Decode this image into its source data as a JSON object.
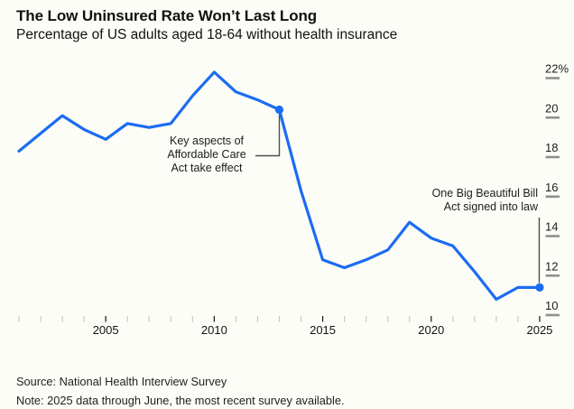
{
  "header": {
    "title": "The Low Uninsured Rate Won’t Last Long",
    "subtitle": "Percentage of US adults aged 18-64 without health insurance"
  },
  "chart_data": {
    "type": "line",
    "title": "The Low Uninsured Rate Won’t Last Long",
    "subtitle": "Percentage of US adults aged 18-64 without health insurance",
    "series": [
      {
        "name": "Percentage of US adults aged 18-64 without health insurance",
        "x": [
          2001,
          2002,
          2003,
          2004,
          2005,
          2006,
          2007,
          2008,
          2009,
          2010,
          2011,
          2012,
          2013,
          2014,
          2015,
          2016,
          2017,
          2018,
          2019,
          2020,
          2021,
          2022,
          2023,
          2024,
          2025
        ],
        "values": [
          18.3,
          19.2,
          20.1,
          19.4,
          18.9,
          19.7,
          19.5,
          19.7,
          21.1,
          22.3,
          21.3,
          20.9,
          20.4,
          16.3,
          12.8,
          12.4,
          12.8,
          13.3,
          14.7,
          13.9,
          13.5,
          12.2,
          10.8,
          11.4,
          11.4
        ]
      }
    ],
    "xlim": [
      2001,
      2025
    ],
    "ylim": [
      10,
      22
    ],
    "yticks": [
      10,
      12,
      14,
      16,
      18,
      20,
      22
    ],
    "ytick_labels": [
      "10",
      "12",
      "14",
      "16",
      "18",
      "20",
      "22%"
    ],
    "xticks_labeled": [
      2005,
      2010,
      2015,
      2020,
      2025
    ],
    "xtick_labels": [
      "2005",
      "2010",
      "2015",
      "2020",
      "2025"
    ],
    "grid": "off",
    "legend": "none",
    "axis_style": "right-side percent labels with short gray dash marks; yearly minor ticks on bottom",
    "markers": [
      {
        "year": 2013,
        "value": 20.4
      },
      {
        "year": 2025,
        "value": 11.4
      }
    ],
    "annotations": [
      {
        "year": 2013,
        "value": 20.4,
        "lines": [
          "Key aspects of",
          "Affordable Care",
          "Act take effect"
        ]
      },
      {
        "year": 2025,
        "value": 11.4,
        "lines": [
          "One Big Beautiful Bill",
          "Act signed into law"
        ]
      }
    ]
  },
  "colors": {
    "line": "#1A6CF2",
    "marker": "#1A6CF2",
    "background": "#FDFDF8",
    "axis_text": "#1b1b1b",
    "ytick_dash": "#8F8F8F",
    "minor_tick": "#C7C7C7",
    "major_tick": "#111111",
    "leader_line": "#4D4D4D"
  },
  "footer": {
    "source": "Source: National Health Interview Survey",
    "note": "Note: 2025 data through June, the most recent survey available."
  }
}
